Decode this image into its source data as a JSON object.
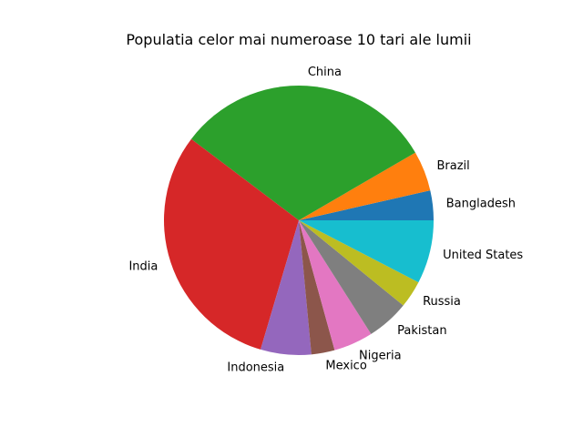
{
  "chart_data": {
    "type": "pie",
    "title": "Populatia celor mai numeroase 10 tari ale lumii",
    "labels": [
      "Bangladesh",
      "Brazil",
      "China",
      "India",
      "Indonesia",
      "Mexico",
      "Nigeria",
      "Pakistan",
      "Russia",
      "United States"
    ],
    "values": [
      3.7,
      5.0,
      32.5,
      31.9,
      6.3,
      2.9,
      4.9,
      5.3,
      3.4,
      7.9
    ],
    "value_unit": "percent of total (estimated from slice angles)",
    "colors": [
      "#1f77b4",
      "#ff7f0e",
      "#2ca02c",
      "#d62728",
      "#9467bd",
      "#8c564b",
      "#e377c2",
      "#7f7f7f",
      "#bcbd22",
      "#17becf"
    ],
    "start_angle_deg": 0,
    "direction": "counterclockwise",
    "legend": "none"
  }
}
